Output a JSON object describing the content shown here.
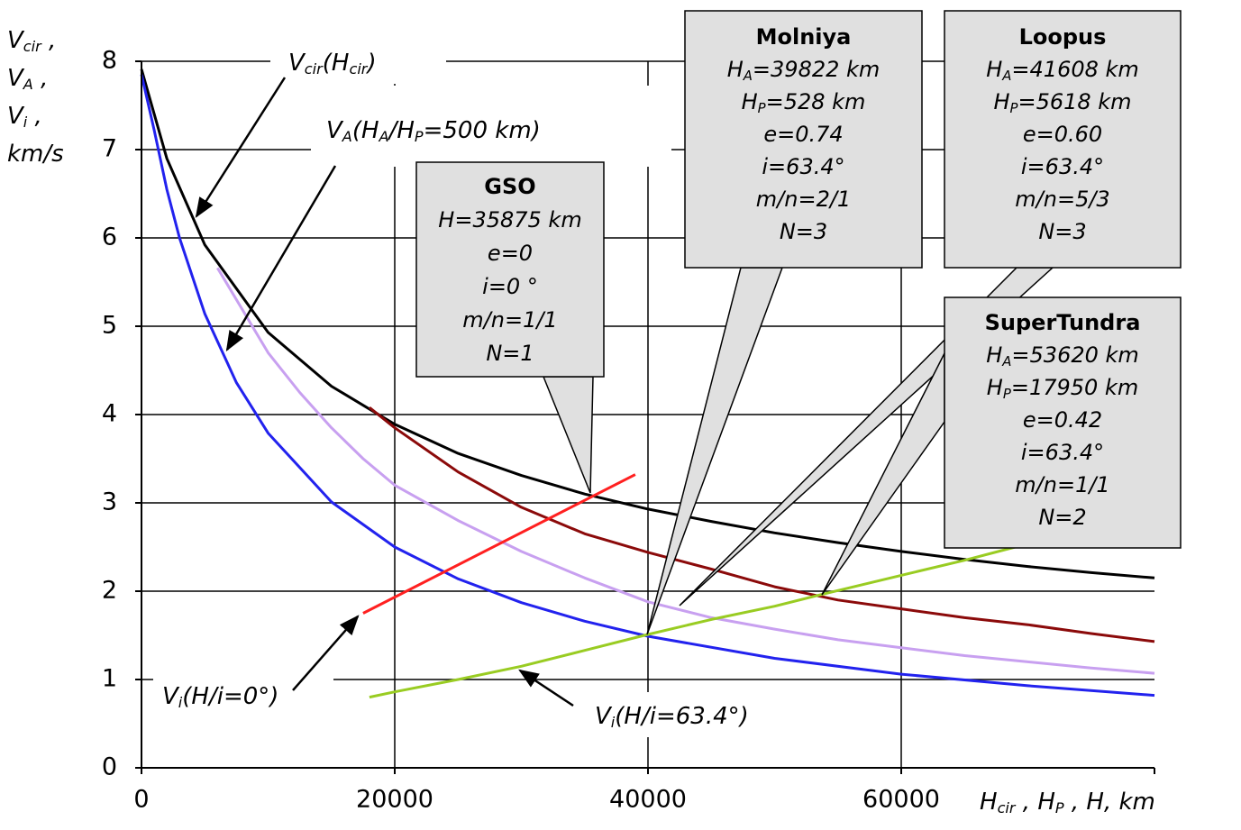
{
  "chart_data": {
    "type": "line",
    "y_label": [
      [
        "V",
        "cir",
        " ,"
      ],
      [
        "V",
        "A",
        " ,"
      ],
      [
        "V",
        "i",
        " ,"
      ],
      [
        "km/s"
      ]
    ],
    "x_label": [
      "H",
      "cir",
      " , H",
      "P",
      " , H, km"
    ],
    "xlim": [
      0,
      80000
    ],
    "xticks": [
      0,
      20000,
      40000,
      60000
    ],
    "ylim": [
      0,
      8
    ],
    "yticks": [
      0,
      1,
      2,
      3,
      4,
      5,
      6,
      7,
      8
    ],
    "grid": true,
    "series": [
      {
        "color": "#000000",
        "label": [
          "V",
          "cir",
          "(H",
          "cir",
          ")"
        ],
        "x": [
          0,
          2000,
          5000,
          10000,
          15000,
          20000,
          25000,
          30000,
          35000,
          40000,
          45000,
          50000,
          55000,
          60000,
          65000,
          70000,
          75000,
          80000
        ],
        "values": [
          7.91,
          6.9,
          5.92,
          4.93,
          4.32,
          3.89,
          3.56,
          3.31,
          3.1,
          2.93,
          2.79,
          2.66,
          2.55,
          2.45,
          2.36,
          2.28,
          2.21,
          2.15
        ]
      },
      {
        "color": "#2222ee",
        "label": [
          "V",
          "A",
          "(H",
          "A",
          "/H",
          "P",
          "=500 km)"
        ],
        "x": [
          0,
          1000,
          2000,
          3000,
          5000,
          7500,
          10000,
          15000,
          20000,
          25000,
          30000,
          35000,
          40000,
          50000,
          60000,
          70000,
          80000
        ],
        "values": [
          7.85,
          7.22,
          6.55,
          6.0,
          5.14,
          4.36,
          3.79,
          3.01,
          2.5,
          2.14,
          1.87,
          1.66,
          1.49,
          1.24,
          1.06,
          0.93,
          0.82
        ]
      },
      {
        "color": "#c8a0f0",
        "x": [
          6000,
          7500,
          10000,
          12500,
          15000,
          17500,
          20000,
          25000,
          30000,
          35000,
          40000,
          45000,
          50000,
          55000,
          60000,
          65000,
          70000,
          75000,
          80000
        ],
        "values": [
          5.66,
          5.3,
          4.7,
          4.25,
          3.85,
          3.5,
          3.2,
          2.8,
          2.45,
          2.15,
          1.88,
          1.7,
          1.57,
          1.45,
          1.36,
          1.27,
          1.2,
          1.13,
          1.07
        ]
      },
      {
        "color": "#8b0a0a",
        "x": [
          18000,
          20000,
          25000,
          30000,
          35000,
          40000,
          45000,
          50000,
          55000,
          60000,
          65000,
          70000,
          75000,
          80000
        ],
        "values": [
          4.08,
          3.85,
          3.35,
          2.95,
          2.65,
          2.44,
          2.25,
          2.05,
          1.9,
          1.8,
          1.7,
          1.62,
          1.52,
          1.43
        ]
      },
      {
        "color": "#ff2020",
        "label": [
          "V",
          "i",
          "(H/i=0°)"
        ],
        "x": [
          17500,
          39000
        ],
        "values": [
          1.75,
          3.32
        ]
      },
      {
        "color": "#99cc22",
        "label": [
          "V",
          "i",
          "(H/i=63.4°)"
        ],
        "x": [
          18000,
          20000,
          25000,
          30000,
          35000,
          40000,
          45000,
          50000,
          53620,
          60000,
          65000,
          69000
        ],
        "values": [
          0.8,
          0.86,
          1.0,
          1.15,
          1.33,
          1.51,
          1.68,
          1.83,
          1.96,
          2.18,
          2.35,
          2.5
        ]
      }
    ],
    "callouts": [
      {
        "title": "GSO",
        "lines": [
          [
            "H=35875 km"
          ],
          [
            "e=0"
          ],
          [
            "i=0 °"
          ],
          [
            "m/n=1/1"
          ],
          [
            "N=1"
          ]
        ]
      },
      {
        "title": "Molniya",
        "lines": [
          [
            "H",
            "A",
            "=39822 km"
          ],
          [
            "H",
            "P",
            "=528 km"
          ],
          [
            "e=0.74"
          ],
          [
            "i=63.4°"
          ],
          [
            "m/n=2/1"
          ],
          [
            "N=3"
          ]
        ]
      },
      {
        "title": "Loopus",
        "lines": [
          [
            "H",
            "A",
            "=41608 km"
          ],
          [
            "H",
            "P",
            "=5618 km"
          ],
          [
            "e=0.60"
          ],
          [
            "i=63.4°"
          ],
          [
            "m/n=5/3"
          ],
          [
            "N=3"
          ]
        ]
      },
      {
        "title": "SuperTundra",
        "lines": [
          [
            "H",
            "A",
            "=53620 km"
          ],
          [
            "H",
            "P",
            "=17950 km"
          ],
          [
            "e=0.42"
          ],
          [
            "i=63.4°"
          ],
          [
            "m/n=1/1"
          ],
          [
            "N=2"
          ]
        ]
      }
    ]
  }
}
